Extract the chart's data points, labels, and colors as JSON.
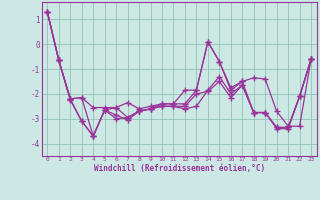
{
  "xlabel": "Windchill (Refroidissement éolien,°C)",
  "bg_color": "#cce8e4",
  "line_color": "#993399",
  "ylim": [
    -4.5,
    1.7
  ],
  "y_ticks": [
    -4,
    -3,
    -2,
    -1,
    0,
    1
  ],
  "x_ticks": [
    0,
    1,
    2,
    3,
    4,
    5,
    6,
    7,
    8,
    9,
    10,
    11,
    12,
    13,
    14,
    15,
    16,
    17,
    18,
    19,
    20,
    21,
    22,
    23
  ],
  "lines": [
    [
      1.3,
      -0.65,
      -2.2,
      -2.15,
      -2.55,
      -2.55,
      -2.55,
      -2.35,
      -2.6,
      -2.5,
      -2.4,
      -2.4,
      -2.4,
      -1.85,
      0.1,
      -0.7,
      -1.75,
      -1.5,
      -1.35,
      -1.4,
      -2.7,
      -3.3,
      -3.3,
      -0.6
    ],
    [
      1.3,
      -0.65,
      -2.2,
      -2.15,
      -3.7,
      -2.65,
      -3.0,
      -2.95,
      -2.7,
      -2.6,
      -2.5,
      -2.5,
      -2.6,
      -2.5,
      -1.85,
      -1.3,
      -2.0,
      -1.65,
      -2.75,
      -2.75,
      -3.35,
      -3.35,
      -2.1,
      -0.6
    ],
    [
      1.3,
      -0.65,
      -2.2,
      -3.1,
      -3.7,
      -2.65,
      -2.55,
      -2.95,
      -2.7,
      -2.6,
      -2.4,
      -2.4,
      -1.85,
      -1.85,
      0.1,
      -0.7,
      -1.85,
      -1.5,
      -2.75,
      -2.75,
      -3.35,
      -3.35,
      -2.1,
      -0.6
    ],
    [
      1.3,
      -0.65,
      -2.25,
      -3.1,
      -3.7,
      -2.65,
      -2.85,
      -3.05,
      -2.7,
      -2.6,
      -2.5,
      -2.5,
      -2.5,
      -2.0,
      -1.9,
      -1.5,
      -2.15,
      -1.65,
      -2.75,
      -2.75,
      -3.4,
      -3.4,
      -2.1,
      -0.6
    ]
  ],
  "spine_color": "#993399",
  "tick_color": "#993399",
  "label_color": "#993399"
}
